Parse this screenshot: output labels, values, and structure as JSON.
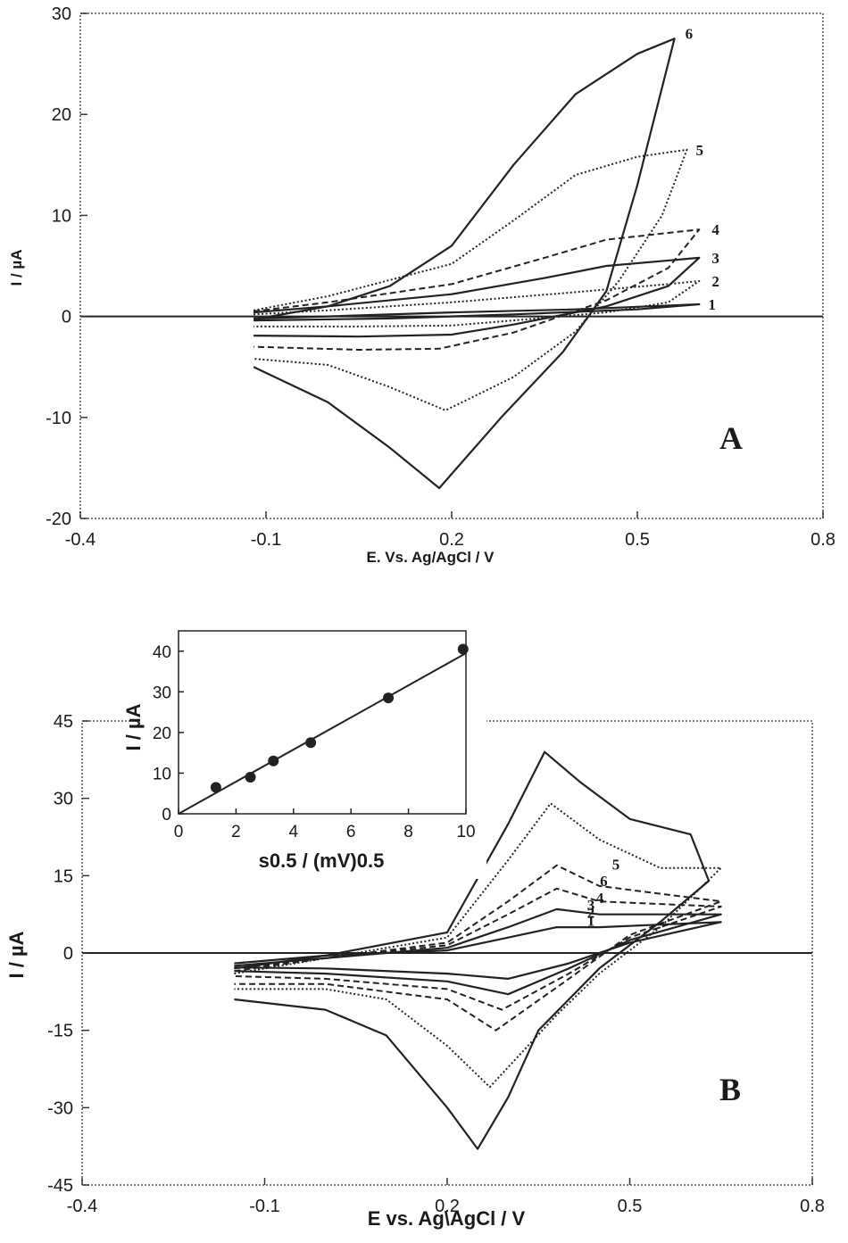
{
  "chart_data": [
    {
      "type": "line",
      "panel_label": "A",
      "xlabel": "E. Vs. Ag/AgCl / V",
      "ylabel": "I / µA",
      "xlim": [
        -0.4,
        0.8
      ],
      "ylim": [
        -20,
        30
      ],
      "x_ticks": [
        "-0.4",
        "-0.1",
        "0.2",
        "0.5",
        "0.8"
      ],
      "y_ticks": [
        "-20",
        "-10",
        "0",
        "10",
        "20",
        "30"
      ],
      "grid": false,
      "series": [
        {
          "name": "1",
          "style": "solid",
          "forward": [
            [
              -0.12,
              -0.2
            ],
            [
              0.0,
              0.0
            ],
            [
              0.2,
              0.4
            ],
            [
              0.4,
              0.7
            ],
            [
              0.6,
              1.2
            ]
          ],
          "reverse": [
            [
              0.6,
              1.2
            ],
            [
              0.5,
              0.7
            ],
            [
              0.3,
              0.2
            ],
            [
              0.1,
              -0.2
            ],
            [
              -0.12,
              -0.4
            ]
          ]
        },
        {
          "name": "2",
          "style": "dotted",
          "forward": [
            [
              -0.12,
              0.2
            ],
            [
              0.0,
              0.6
            ],
            [
              0.2,
              1.4
            ],
            [
              0.4,
              2.4
            ],
            [
              0.55,
              3.2
            ],
            [
              0.6,
              3.5
            ]
          ],
          "reverse": [
            [
              0.6,
              3.5
            ],
            [
              0.55,
              1.4
            ],
            [
              0.45,
              0.4
            ],
            [
              0.3,
              -0.4
            ],
            [
              0.2,
              -0.9
            ],
            [
              0.05,
              -1.0
            ],
            [
              -0.12,
              -1.0
            ]
          ]
        },
        {
          "name": "3",
          "style": "solid",
          "forward": [
            [
              -0.12,
              0.4
            ],
            [
              0.0,
              1.0
            ],
            [
              0.2,
              2.2
            ],
            [
              0.35,
              3.8
            ],
            [
              0.45,
              5.0
            ],
            [
              0.6,
              5.8
            ]
          ],
          "reverse": [
            [
              0.6,
              5.8
            ],
            [
              0.55,
              3.0
            ],
            [
              0.45,
              1.0
            ],
            [
              0.3,
              -0.8
            ],
            [
              0.2,
              -1.8
            ],
            [
              0.05,
              -2.0
            ],
            [
              -0.12,
              -1.9
            ]
          ]
        },
        {
          "name": "4",
          "style": "dashed",
          "forward": [
            [
              -0.12,
              0.5
            ],
            [
              0.0,
              1.4
            ],
            [
              0.2,
              3.2
            ],
            [
              0.35,
              5.8
            ],
            [
              0.45,
              7.6
            ],
            [
              0.6,
              8.6
            ]
          ],
          "reverse": [
            [
              0.6,
              8.6
            ],
            [
              0.55,
              4.8
            ],
            [
              0.45,
              1.6
            ],
            [
              0.3,
              -1.6
            ],
            [
              0.18,
              -3.2
            ],
            [
              0.05,
              -3.3
            ],
            [
              -0.12,
              -3.0
            ]
          ]
        },
        {
          "name": "5",
          "style": "dotted",
          "forward": [
            [
              -0.12,
              0.6
            ],
            [
              0.0,
              2.0
            ],
            [
              0.2,
              5.2
            ],
            [
              0.3,
              9.5
            ],
            [
              0.4,
              14.0
            ],
            [
              0.5,
              15.8
            ],
            [
              0.58,
              16.5
            ]
          ],
          "reverse": [
            [
              0.58,
              16.5
            ],
            [
              0.54,
              10.0
            ],
            [
              0.47,
              3.5
            ],
            [
              0.4,
              -1.5
            ],
            [
              0.3,
              -6.0
            ],
            [
              0.19,
              -9.3
            ],
            [
              0.1,
              -7.0
            ],
            [
              0.0,
              -4.8
            ],
            [
              -0.12,
              -4.2
            ]
          ]
        },
        {
          "name": "6",
          "style": "solid",
          "forward": [
            [
              -0.12,
              -0.3
            ],
            [
              0.0,
              1.0
            ],
            [
              0.1,
              3.0
            ],
            [
              0.2,
              7.0
            ],
            [
              0.3,
              15.0
            ],
            [
              0.4,
              22.0
            ],
            [
              0.5,
              26.0
            ],
            [
              0.56,
              27.5
            ]
          ],
          "reverse": [
            [
              0.56,
              27.5
            ],
            [
              0.5,
              13.0
            ],
            [
              0.45,
              2.5
            ],
            [
              0.38,
              -3.5
            ],
            [
              0.28,
              -10.0
            ],
            [
              0.18,
              -17.0
            ],
            [
              0.1,
              -13.0
            ],
            [
              0.0,
              -8.5
            ],
            [
              -0.12,
              -5.0
            ]
          ]
        }
      ]
    },
    {
      "type": "line",
      "panel_label": "B",
      "xlabel": "E vs. Ag\\AgCl / V",
      "ylabel": "I / µA",
      "xlim": [
        -0.4,
        0.8
      ],
      "ylim": [
        -45,
        45
      ],
      "x_ticks": [
        "-0.4",
        "-0.1",
        "0.2",
        "0.5",
        "0.8"
      ],
      "y_ticks": [
        "-45",
        "-30",
        "-15",
        "0",
        "15",
        "30",
        "45"
      ],
      "grid": false,
      "series": [
        {
          "name": "1",
          "style": "solid",
          "forward": [
            [
              -0.15,
              -2.0
            ],
            [
              0.0,
              -0.5
            ],
            [
              0.2,
              0.5
            ],
            [
              0.3,
              3.0
            ],
            [
              0.38,
              5.0
            ],
            [
              0.45,
              5.0
            ],
            [
              0.65,
              6.0
            ]
          ],
          "reverse": [
            [
              0.65,
              6.0
            ],
            [
              0.5,
              2.0
            ],
            [
              0.4,
              -2.0
            ],
            [
              0.3,
              -5.0
            ],
            [
              0.2,
              -4.0
            ],
            [
              0.0,
              -3.0
            ],
            [
              -0.15,
              -2.8
            ]
          ]
        },
        {
          "name": "2",
          "style": "solid",
          "forward": [
            [
              -0.15,
              -2.5
            ],
            [
              0.0,
              -1.0
            ],
            [
              0.2,
              1.0
            ],
            [
              0.3,
              5.0
            ],
            [
              0.38,
              8.5
            ],
            [
              0.45,
              7.5
            ],
            [
              0.65,
              7.5
            ]
          ],
          "reverse": [
            [
              0.65,
              7.5
            ],
            [
              0.5,
              2.5
            ],
            [
              0.4,
              -3.0
            ],
            [
              0.3,
              -8.0
            ],
            [
              0.2,
              -5.5
            ],
            [
              0.0,
              -4.0
            ],
            [
              -0.15,
              -3.5
            ]
          ]
        },
        {
          "name": "3",
          "style": "dashed",
          "forward": [
            [
              -0.15,
              -3.0
            ],
            [
              0.0,
              -1.0
            ],
            [
              0.2,
              1.5
            ],
            [
              0.3,
              7.5
            ],
            [
              0.38,
              12.5
            ],
            [
              0.45,
              10.0
            ],
            [
              0.65,
              9.0
            ]
          ],
          "reverse": [
            [
              0.65,
              9.0
            ],
            [
              0.5,
              3.0
            ],
            [
              0.4,
              -4.0
            ],
            [
              0.29,
              -11.0
            ],
            [
              0.2,
              -7.0
            ],
            [
              0.0,
              -5.0
            ],
            [
              -0.15,
              -4.5
            ]
          ]
        },
        {
          "name": "4",
          "style": "dashed",
          "forward": [
            [
              -0.15,
              -3.5
            ],
            [
              0.0,
              -1.0
            ],
            [
              0.2,
              2.0
            ],
            [
              0.3,
              10.0
            ],
            [
              0.38,
              17.0
            ],
            [
              0.45,
              13.0
            ],
            [
              0.65,
              10.0
            ]
          ],
          "reverse": [
            [
              0.65,
              10.0
            ],
            [
              0.5,
              3.5
            ],
            [
              0.4,
              -5.0
            ],
            [
              0.28,
              -15.0
            ],
            [
              0.2,
              -9.0
            ],
            [
              0.0,
              -6.0
            ],
            [
              -0.15,
              -6.0
            ]
          ]
        },
        {
          "name": "5",
          "style": "dotted",
          "forward": [
            [
              -0.15,
              -4.0
            ],
            [
              0.0,
              -1.0
            ],
            [
              0.2,
              3.0
            ],
            [
              0.3,
              18.0
            ],
            [
              0.37,
              29.0
            ],
            [
              0.45,
              22.0
            ],
            [
              0.55,
              16.5
            ],
            [
              0.65,
              16.5
            ]
          ],
          "reverse": [
            [
              0.65,
              16.5
            ],
            [
              0.55,
              5.0
            ],
            [
              0.45,
              -4.0
            ],
            [
              0.38,
              -12.0
            ],
            [
              0.27,
              -26.0
            ],
            [
              0.2,
              -18.0
            ],
            [
              0.1,
              -9.0
            ],
            [
              0.0,
              -7.0
            ],
            [
              -0.15,
              -7.0
            ]
          ]
        },
        {
          "name": "6",
          "style": "solid",
          "forward": [
            [
              -0.15,
              -3.0
            ],
            [
              0.0,
              -0.5
            ],
            [
              0.2,
              4.0
            ],
            [
              0.3,
              25.0
            ],
            [
              0.36,
              39.0
            ],
            [
              0.42,
              33.0
            ],
            [
              0.5,
              26.0
            ],
            [
              0.6,
              23.0
            ],
            [
              0.63,
              14.0
            ]
          ],
          "reverse": [
            [
              0.63,
              14.0
            ],
            [
              0.55,
              6.0
            ],
            [
              0.45,
              -3.0
            ],
            [
              0.35,
              -15.0
            ],
            [
              0.3,
              -28.0
            ],
            [
              0.25,
              -38.0
            ],
            [
              0.2,
              -30.0
            ],
            [
              0.1,
              -16.0
            ],
            [
              0.0,
              -11.0
            ],
            [
              -0.15,
              -9.0
            ]
          ]
        }
      ]
    },
    {
      "type": "scatter",
      "panel_label": "inset",
      "xlabel": "s0.5 / (mV)0.5",
      "ylabel": "I / µA",
      "xlim": [
        0,
        10
      ],
      "ylim": [
        0,
        45
      ],
      "x_ticks": [
        "0",
        "2",
        "4",
        "6",
        "8",
        "10"
      ],
      "y_ticks": [
        "0",
        "10",
        "20",
        "30",
        "40"
      ],
      "grid": false,
      "points": [
        [
          1.3,
          6.5
        ],
        [
          2.5,
          9.0
        ],
        [
          3.3,
          13.0
        ],
        [
          4.6,
          17.5
        ],
        [
          7.3,
          28.5
        ],
        [
          9.9,
          40.5
        ]
      ],
      "fit_line": [
        [
          0,
          0
        ],
        [
          10,
          39.5
        ]
      ]
    }
  ]
}
